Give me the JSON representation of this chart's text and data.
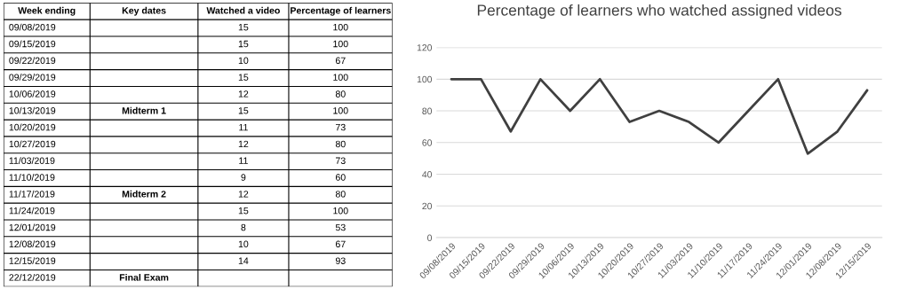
{
  "chart_data": [
    {
      "type": "heatmap",
      "ylabel": "Week ending",
      "categories": [
        "Key dates",
        "Watched a video",
        "Percentage of learners"
      ],
      "y_categories": [
        "09/08/2019",
        "09/15/2019",
        "09/22/2019",
        "09/29/2019",
        "10/06/2019",
        "10/13/2019",
        "10/20/2019",
        "10/27/2019",
        "11/03/2019",
        "11/10/2019",
        "11/17/2019",
        "11/24/2019",
        "12/01/2019",
        "12/08/2019",
        "12/15/2019",
        "22/12/2019"
      ],
      "cells": [
        [
          null,
          null,
          null
        ],
        [
          null,
          null,
          null
        ],
        [
          null,
          null,
          null
        ],
        [
          null,
          null,
          null
        ],
        [
          null,
          null,
          null
        ],
        [
          null,
          null,
          null
        ],
        [
          null,
          null,
          null
        ],
        [
          null,
          null,
          null
        ],
        [
          null,
          null,
          null
        ],
        [
          null,
          null,
          null
        ],
        [
          null,
          null,
          null
        ],
        [
          null,
          null,
          null
        ],
        [
          null,
          null,
          null
        ],
        [
          null,
          null,
          null
        ],
        [
          null,
          null,
          null
        ],
        [
          null,
          null,
          null
        ]
      ],
      "cell_labels": [
        [
          null,
          "15",
          "100"
        ],
        [
          null,
          "15",
          "100"
        ],
        [
          null,
          "10",
          "67"
        ],
        [
          null,
          "15",
          "100"
        ],
        [
          null,
          "12",
          "80"
        ],
        [
          "Midterm 1",
          "15",
          "100"
        ],
        [
          null,
          "11",
          "73"
        ],
        [
          null,
          "12",
          "80"
        ],
        [
          null,
          "11",
          "73"
        ],
        [
          null,
          "9",
          "60"
        ],
        [
          "Midterm 2",
          "12",
          "80"
        ],
        [
          null,
          "15",
          "100"
        ],
        [
          null,
          "8",
          "53"
        ],
        [
          null,
          "10",
          "67"
        ],
        [
          null,
          "14",
          "93"
        ],
        [
          "Final Exam",
          null,
          null
        ]
      ]
    },
    {
      "type": "line",
      "title": "Percentage of learners who watched assigned videos",
      "categories": [
        "09/08/2019",
        "09/15/2019",
        "09/22/2019",
        "09/29/2019",
        "10/06/2019",
        "10/13/2019",
        "10/20/2019",
        "10/27/2019",
        "11/03/2019",
        "11/10/2019",
        "11/17/2019",
        "11/24/2019",
        "12/01/2019",
        "12/08/2019",
        "12/15/2019"
      ],
      "values": [
        100,
        100,
        67,
        100,
        80,
        100,
        73,
        80,
        73,
        60,
        80,
        100,
        53,
        67,
        93
      ],
      "color": "#404040",
      "ylim": [
        0,
        120
      ],
      "yticks": [
        0,
        20,
        40,
        60,
        80,
        100,
        120
      ],
      "grid": "y"
    }
  ]
}
